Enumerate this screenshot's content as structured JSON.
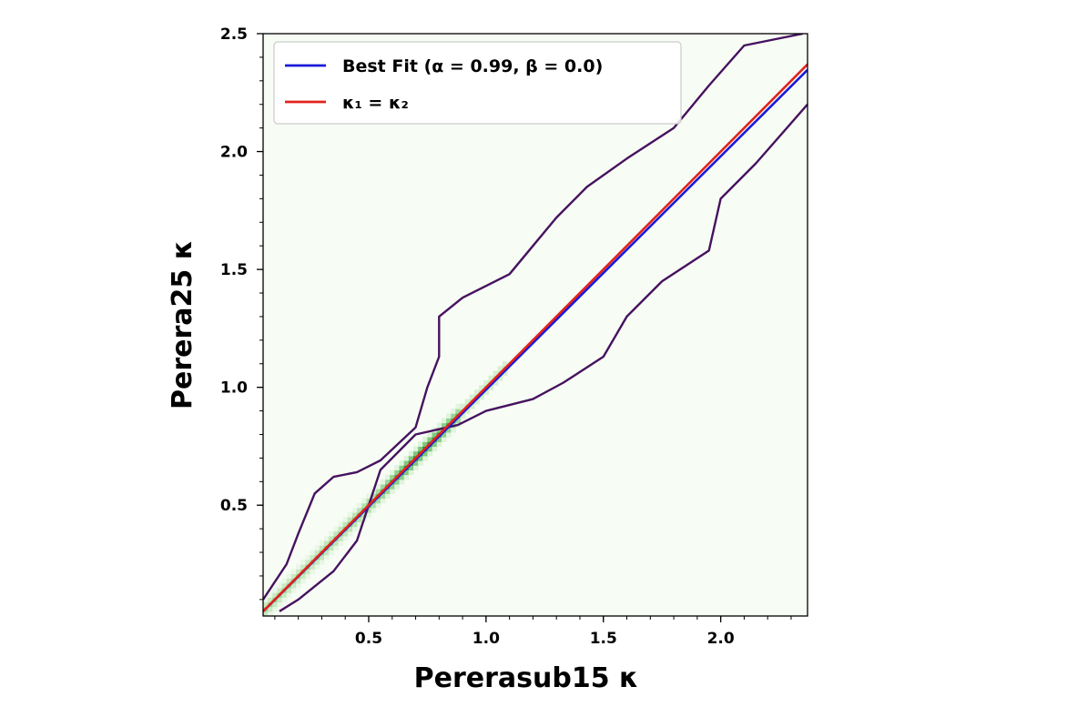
{
  "chart_data": {
    "type": "heatmap",
    "xlabel": "Pererasub15 κ",
    "ylabel": "Perera25 κ",
    "xlim": [
      0.05,
      2.37
    ],
    "ylim": [
      0.03,
      2.5
    ],
    "x_ticks": [
      "0.5",
      "1.0",
      "1.5",
      "2.0"
    ],
    "y_ticks": [
      "0.5",
      "1.0",
      "1.5",
      "2.0",
      "2.5"
    ],
    "x_tick_values": [
      0.5,
      1.0,
      1.5,
      2.0
    ],
    "y_tick_values": [
      0.5,
      1.0,
      1.5,
      2.0,
      2.5
    ],
    "legend_position": "upper-left",
    "series": [
      {
        "name": "Best Fit (α = 0.99, β = 0.0)",
        "kind": "line",
        "slope": 0.99,
        "intercept": 0.0,
        "color": "#1a1adb"
      },
      {
        "name": "κ₁ = κ₂",
        "kind": "line",
        "slope": 1.0,
        "intercept": 0.0,
        "color": "#e3221c"
      }
    ],
    "density_colormap": "Greens",
    "contour_color": "#46125f",
    "contour": {
      "upper_boundary": [
        [
          0.05,
          0.1
        ],
        [
          0.15,
          0.25
        ],
        [
          0.2,
          0.38
        ],
        [
          0.27,
          0.55
        ],
        [
          0.35,
          0.62
        ],
        [
          0.45,
          0.64
        ],
        [
          0.55,
          0.69
        ],
        [
          0.7,
          0.83
        ],
        [
          0.75,
          1.0
        ],
        [
          0.8,
          1.13
        ],
        [
          0.8,
          1.3
        ],
        [
          0.9,
          1.38
        ],
        [
          1.1,
          1.48
        ],
        [
          1.2,
          1.6
        ],
        [
          1.3,
          1.72
        ],
        [
          1.43,
          1.85
        ],
        [
          1.6,
          1.97
        ],
        [
          1.8,
          2.1
        ],
        [
          1.95,
          2.28
        ],
        [
          2.1,
          2.45
        ],
        [
          2.35,
          2.5
        ]
      ],
      "lower_boundary": [
        [
          0.12,
          0.05
        ],
        [
          0.2,
          0.1
        ],
        [
          0.35,
          0.22
        ],
        [
          0.45,
          0.35
        ],
        [
          0.5,
          0.5
        ],
        [
          0.55,
          0.65
        ],
        [
          0.7,
          0.8
        ],
        [
          0.88,
          0.84
        ],
        [
          1.0,
          0.9
        ],
        [
          1.2,
          0.95
        ],
        [
          1.33,
          1.02
        ],
        [
          1.5,
          1.13
        ],
        [
          1.6,
          1.3
        ],
        [
          1.75,
          1.45
        ],
        [
          1.95,
          1.58
        ],
        [
          2.0,
          1.8
        ],
        [
          2.15,
          1.95
        ],
        [
          2.37,
          2.2
        ]
      ]
    }
  }
}
